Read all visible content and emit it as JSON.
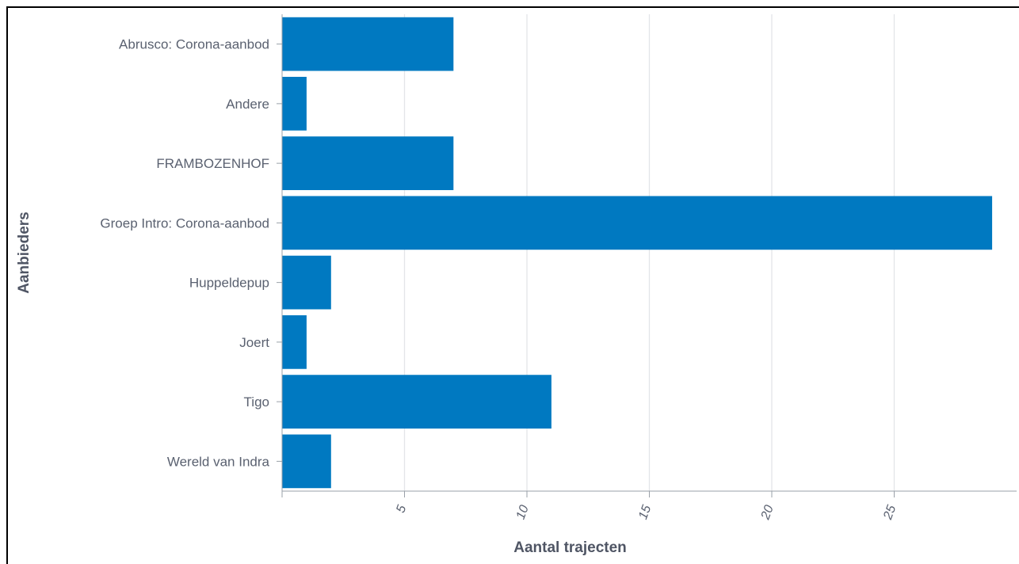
{
  "chart_data": {
    "type": "bar",
    "orientation": "horizontal",
    "categories": [
      "Abrusco: Corona-aanbod",
      "Andere",
      "FRAMBOZENHOF",
      "Groep Intro: Corona-aanbod",
      "Huppeldepup",
      "Joert",
      "Tigo",
      "Wereld van Indra"
    ],
    "values": [
      7,
      1,
      7,
      29,
      2,
      1,
      11,
      2
    ],
    "xlabel": "Aantal trajecten",
    "ylabel": "Aanbieders",
    "xlim": [
      0,
      30
    ],
    "xticks": [
      5,
      10,
      15,
      20,
      25
    ],
    "grid": true,
    "bar_color": "#0079c1"
  }
}
